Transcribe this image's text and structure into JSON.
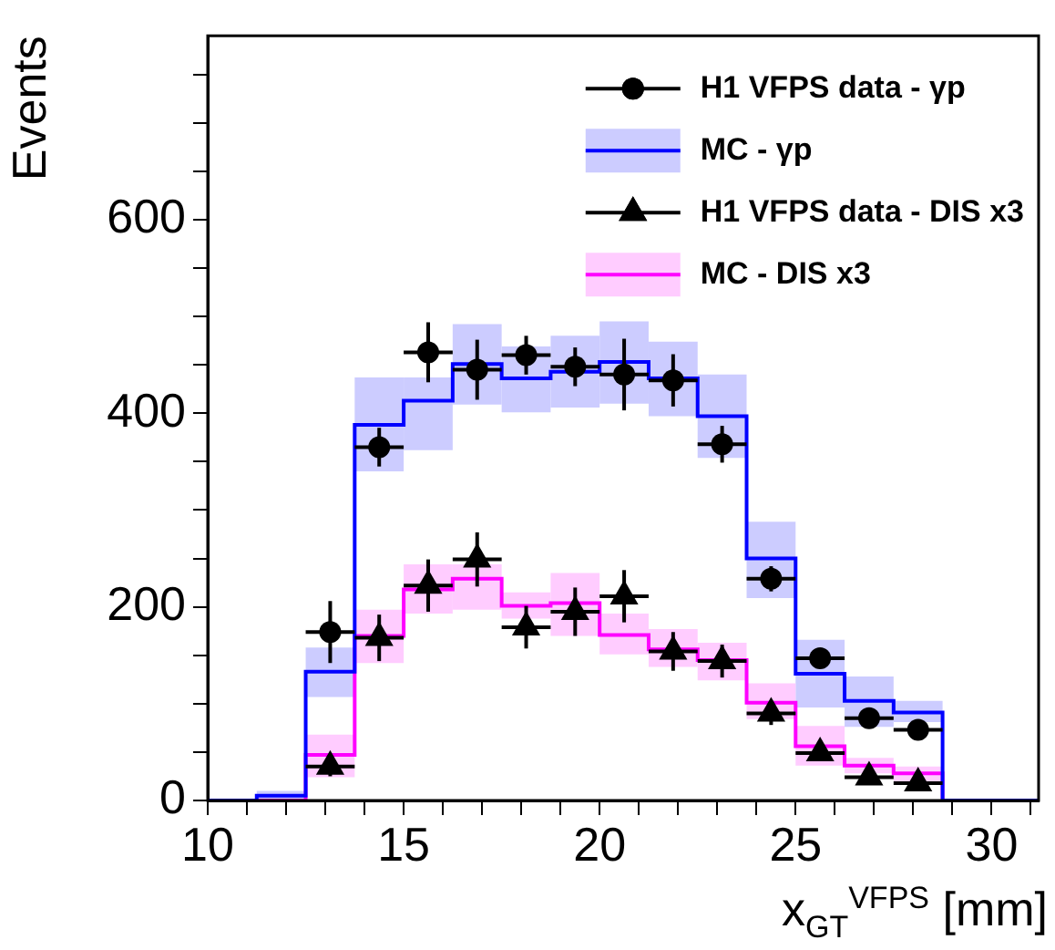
{
  "chart_data": {
    "type": "histogram",
    "xlabel": "x$_{GT}$$^{VFPS}$ [mm]",
    "ylabel": "Events",
    "bins": [
      10,
      11.25,
      12.5,
      13.75,
      15,
      16.25,
      17.5,
      18.75,
      20,
      21.25,
      22.5,
      23.75,
      25,
      26.25,
      27.5,
      28.75,
      30,
      31.2
    ],
    "xlim": [
      10,
      31.2
    ],
    "xticks": [
      10,
      {
        "value": 11,
        "label": null
      },
      {
        "value": 12,
        "label": null
      },
      {
        "value": 13,
        "label": null
      },
      {
        "value": 14,
        "label": null
      },
      15,
      {
        "value": 16,
        "label": null
      },
      {
        "value": 17,
        "label": null
      },
      {
        "value": 18,
        "label": null
      },
      {
        "value": 19,
        "label": null
      },
      20,
      {
        "value": 21,
        "label": null
      },
      {
        "value": 22,
        "label": null
      },
      {
        "value": 23,
        "label": null
      },
      {
        "value": 24,
        "label": null
      },
      25,
      {
        "value": 26,
        "label": null
      },
      {
        "value": 27,
        "label": null
      },
      {
        "value": 28,
        "label": null
      },
      {
        "value": 29,
        "label": null
      },
      30,
      {
        "value": 31,
        "label": null
      }
    ],
    "ylim": [
      0,
      790
    ],
    "yticks": [
      0,
      {
        "value": 50,
        "label": null
      },
      {
        "value": 100,
        "label": null
      },
      {
        "value": 150,
        "label": null
      },
      200,
      {
        "value": 250,
        "label": null
      },
      {
        "value": 300,
        "label": null
      },
      {
        "value": 350,
        "label": null
      },
      400,
      {
        "value": 450,
        "label": null
      },
      {
        "value": 500,
        "label": null
      },
      {
        "value": 550,
        "label": null
      },
      600,
      {
        "value": 650,
        "label": null
      },
      {
        "value": 700,
        "label": null
      },
      {
        "value": 750,
        "label": null
      }
    ],
    "grid": false,
    "legend": "top right",
    "series": [
      {
        "name": "H1 VFPS data - γp",
        "type": "scatter",
        "marker": "circle",
        "color": "#000000",
        "x": [
          13.125,
          14.375,
          15.625,
          16.875,
          18.125,
          19.375,
          20.625,
          21.875,
          23.125,
          24.375,
          25.625,
          26.875,
          28.125
        ],
        "values": [
          174,
          365,
          463,
          445,
          460,
          448,
          440,
          434,
          368,
          229,
          147,
          85,
          73
        ],
        "errors": [
          32,
          20,
          31,
          31,
          20,
          20,
          37,
          27,
          19,
          13,
          8,
          6,
          5
        ],
        "xerrors": [
          0.625,
          0.625,
          0.625,
          0.625,
          0.625,
          0.625,
          0.625,
          0.625,
          0.625,
          0.625,
          0.625,
          0.625,
          0.625
        ]
      },
      {
        "name": "MC - γp",
        "color": "#0000ff",
        "values": [
          0,
          5,
          133,
          388,
          413,
          451,
          436,
          443,
          453,
          436,
          397,
          250,
          131,
          103,
          91,
          0,
          0
        ]
      },
      {
        "name": "H1 VFPS data - DIS x3",
        "type": "scatter",
        "marker": "triangle",
        "color": "#000000",
        "x": [
          13.125,
          14.375,
          15.625,
          16.875,
          18.125,
          19.375,
          20.625,
          21.875,
          23.125,
          24.375,
          25.625,
          26.875,
          28.125
        ],
        "values": [
          35,
          168,
          222,
          249,
          179,
          195,
          211,
          154,
          144,
          90,
          49,
          24,
          18
        ],
        "errors": [
          10,
          24,
          27,
          28,
          22,
          25,
          27,
          20,
          17,
          12,
          8,
          6,
          5
        ],
        "xerrors": [
          0.625,
          0.625,
          0.625,
          0.625,
          0.625,
          0.625,
          0.625,
          0.625,
          0.625,
          0.625,
          0.625,
          0.625,
          0.625
        ]
      },
      {
        "name": "MC - DIS x3",
        "color": "#ff00ff",
        "values": [
          0,
          0,
          47,
          170,
          218,
          229,
          201,
          204,
          171,
          156,
          145,
          101,
          56,
          36,
          28,
          0,
          0
        ]
      },
      {
        "type": "bar",
        "color": "#ccccff",
        "x": [
          11.875,
          13.125,
          14.375,
          15.625,
          16.875,
          18.125,
          19.375,
          20.625,
          21.875,
          23.125,
          24.375,
          25.625,
          26.875,
          28.125
        ],
        "base": [
          0,
          107,
          340,
          362,
          409,
          401,
          406,
          410,
          397,
          354,
          209,
          96,
          76,
          81
        ],
        "values": [
          10,
          51,
          97,
          75,
          83,
          68,
          74,
          85,
          77,
          86,
          79,
          70,
          52,
          22
        ]
      },
      {
        "type": "bar",
        "color": "#ffccff",
        "x": [
          13.125,
          14.375,
          15.625,
          16.875,
          18.125,
          19.375,
          20.625,
          21.875,
          23.125,
          24.375,
          25.625,
          26.875,
          28.125
        ],
        "base": [
          24,
          142,
          193,
          197,
          188,
          170,
          151,
          138,
          124,
          84,
          36,
          28,
          20
        ],
        "values": [
          44,
          55,
          51,
          47,
          27,
          65,
          42,
          39,
          39,
          37,
          41,
          16,
          15
        ]
      }
    ]
  }
}
